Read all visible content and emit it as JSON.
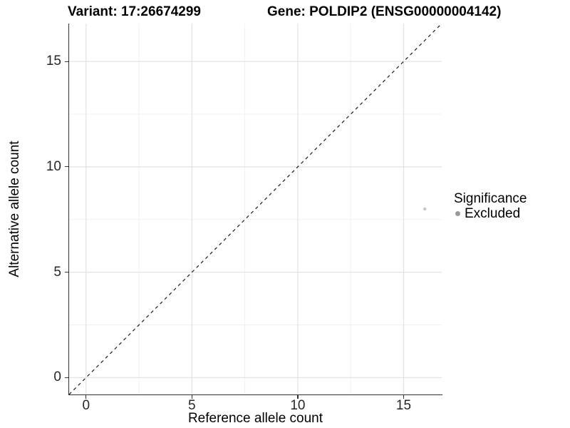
{
  "page": {
    "background": "#ffffff"
  },
  "header": {
    "variant_title": "Variant: 17:26674299",
    "gene_title": "Gene: POLDIP2 (ENSG00000004142)"
  },
  "legend": {
    "title": "Significance",
    "items": [
      {
        "label": "Excluded",
        "color": "#9b9b9b"
      }
    ]
  },
  "chart_data": {
    "type": "scatter",
    "title": "Variant: 17:26674299 — Gene: POLDIP2 (ENSG00000004142)",
    "xlabel": "Reference allele count",
    "ylabel": "Alternative allele count",
    "xlim": [
      -0.8,
      16.8
    ],
    "ylim": [
      -0.8,
      16.8
    ],
    "xticks": [
      0,
      5,
      10,
      15
    ],
    "yticks": [
      0,
      5,
      10,
      15
    ],
    "grid": {
      "major": true,
      "minor": true,
      "major_color": "#e2e2e2",
      "minor_color": "#f0f0f0",
      "background": "#ffffff"
    },
    "reference_line": {
      "kind": "identity",
      "slope": 1,
      "intercept": 0,
      "style": "dashed",
      "color": "#1a1a1a"
    },
    "series": [
      {
        "name": "Excluded",
        "color": "#c4c4c4",
        "point_radius": 2.2,
        "points": [
          {
            "x": 16,
            "y": 8
          }
        ]
      }
    ],
    "legend_title": "Significance",
    "legend_position": "right"
  }
}
